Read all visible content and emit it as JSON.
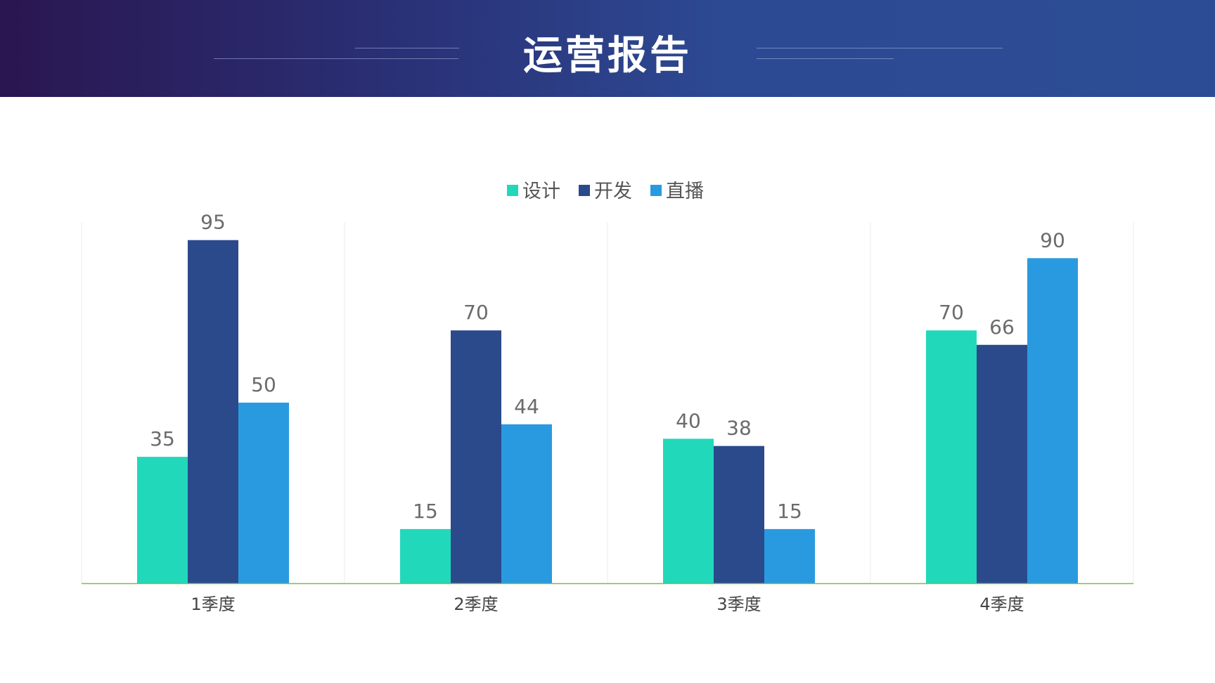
{
  "header": {
    "title": "运营报告",
    "background_colors": [
      "#2a1650",
      "#2c4c95"
    ]
  },
  "chart_data": {
    "type": "bar",
    "title": "",
    "xlabel": "",
    "ylabel": "",
    "categories": [
      "1季度",
      "2季度",
      "3季度",
      "4季度"
    ],
    "series": [
      {
        "name": "设计",
        "color": "#22d8bb",
        "values": [
          35,
          15,
          40,
          70
        ]
      },
      {
        "name": "开发",
        "color": "#2b4a8c",
        "values": [
          95,
          70,
          38,
          66
        ]
      },
      {
        "name": "直播",
        "color": "#2a9ae0",
        "values": [
          50,
          44,
          15,
          90
        ]
      }
    ],
    "ylim": [
      0,
      100
    ],
    "grid": "vertical separators between categories",
    "legend_position": "top-center",
    "data_labels": true,
    "axis_line_color": "#7cbb4e"
  }
}
